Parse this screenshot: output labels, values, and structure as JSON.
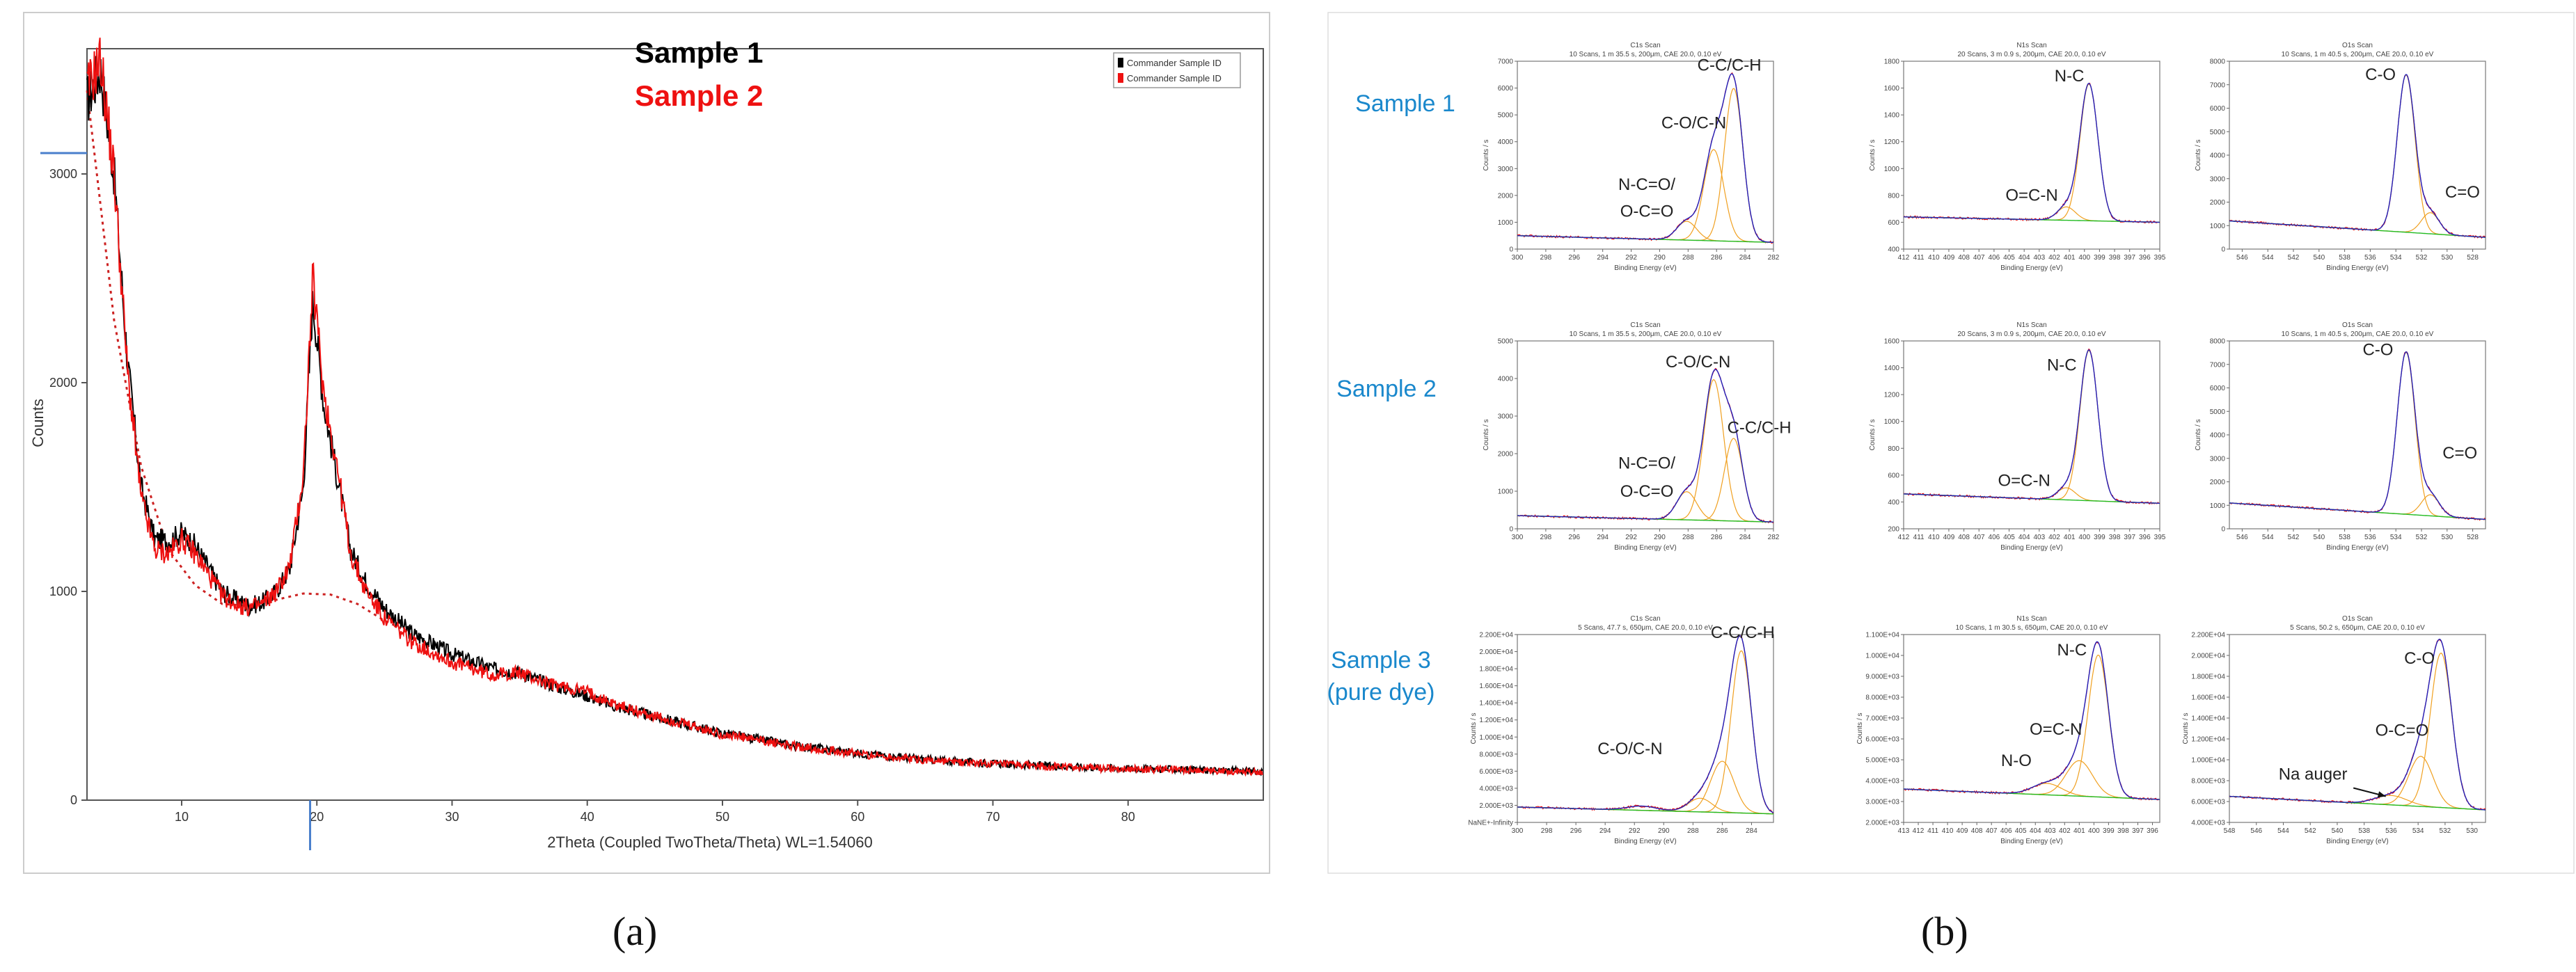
{
  "captions": {
    "a": "(a)",
    "b": "(b)"
  },
  "colors": {
    "sample1": "#000000",
    "sample2": "#ee1111",
    "fit_envelope": "#2222bb",
    "component": "#f0a020",
    "background": "#22bb22",
    "row_label": "#1a88cc",
    "axis_marker": "#4a7fcc"
  },
  "chart_data": [
    {
      "id": "xrd",
      "type": "line",
      "title": "",
      "xlabel": "2Theta (Coupled TwoTheta/Theta) WL=1.54060",
      "ylabel": "Counts",
      "xlim": [
        3,
        90
      ],
      "ylim": [
        0,
        3600
      ],
      "xticks": [
        10,
        20,
        30,
        40,
        50,
        60,
        70,
        80
      ],
      "yticks": [
        0,
        1000,
        2000,
        3000
      ],
      "legend_entries": [
        "Commander Sample ID",
        "Commander Sample ID"
      ],
      "legend_position": "top-right",
      "series_labels": [
        "Sample 1",
        "Sample 2"
      ],
      "series": [
        {
          "name": "Sample 1",
          "color": "#000000",
          "x": [
            3,
            4,
            5,
            6,
            7,
            8,
            9,
            10,
            11,
            12,
            13,
            14,
            15,
            16,
            17,
            18,
            19,
            19.7,
            20.5,
            21.5,
            22.5,
            23.5,
            25,
            27,
            30,
            33,
            35,
            37,
            40,
            42,
            45,
            50,
            55,
            60,
            65,
            70,
            75,
            80,
            85,
            90
          ],
          "y": [
            3350,
            3500,
            3000,
            2100,
            1500,
            1250,
            1240,
            1280,
            1220,
            1110,
            1000,
            960,
            930,
            950,
            1000,
            1110,
            1500,
            2400,
            1900,
            1550,
            1200,
            1060,
            920,
            800,
            700,
            630,
            610,
            560,
            500,
            450,
            400,
            320,
            265,
            225,
            195,
            175,
            162,
            152,
            145,
            138
          ]
        },
        {
          "name": "Sample 2",
          "color": "#ee1111",
          "x": [
            3,
            4,
            5,
            6,
            7,
            8,
            9,
            10,
            11,
            12,
            13,
            14,
            15,
            16,
            17,
            18,
            19,
            19.7,
            20.5,
            21.5,
            22.5,
            23.5,
            25,
            27,
            30,
            33,
            35,
            37,
            40,
            42,
            45,
            50,
            55,
            60,
            65,
            70,
            75,
            80,
            85,
            90
          ],
          "y": [
            3400,
            3550,
            3000,
            2050,
            1450,
            1200,
            1180,
            1250,
            1180,
            1080,
            980,
            940,
            920,
            940,
            1000,
            1120,
            1560,
            2500,
            1960,
            1600,
            1180,
            1020,
            870,
            760,
            660,
            600,
            610,
            560,
            520,
            460,
            400,
            315,
            262,
            222,
            192,
            172,
            160,
            150,
            143,
            136
          ]
        }
      ],
      "baseline": {
        "style": "dotted",
        "color": "#cc2222",
        "x": [
          3,
          5,
          7,
          9,
          11,
          13,
          15,
          17,
          19,
          21,
          23,
          25,
          27
        ],
        "y": [
          3400,
          2300,
          1600,
          1200,
          1030,
          940,
          930,
          960,
          990,
          985,
          940,
          860,
          800
        ]
      }
    },
    {
      "id": "xps-c1s-s1",
      "type": "line",
      "row": 0,
      "col": 0,
      "title_lines": [
        "C1s Scan",
        "10 Scans, 1 m 35.5 s, 200μm, CAE 20.0, 0.10 eV"
      ],
      "xlabel": "Binding Energy (eV)",
      "ylabel": "Counts / s",
      "xlim": [
        300,
        282
      ],
      "ylim": [
        0,
        7000
      ],
      "xticks": [
        300,
        298,
        296,
        294,
        292,
        290,
        288,
        286,
        284,
        282
      ],
      "yticks": [
        0,
        1000,
        2000,
        3000,
        4000,
        5000,
        6000,
        7000
      ],
      "y_sci": false,
      "bg": [
        500,
        250
      ],
      "peaks": [
        {
          "center": 284.8,
          "amp": 5700,
          "width": 0.65,
          "label": "C-C/C-H"
        },
        {
          "center": 286.2,
          "amp": 3400,
          "width": 0.7,
          "label": "C-O/C-N"
        },
        {
          "center": 288.1,
          "amp": 700,
          "width": 0.7,
          "label": "N-C=O/\nO-C=O"
        }
      ],
      "labels": [
        {
          "text": "C-C/C-H",
          "x": 285.1,
          "y": 6650
        },
        {
          "text": "C-O/C-N",
          "x": 287.6,
          "y": 4500
        },
        {
          "text": "N-C=O/",
          "x": 290.9,
          "y": 2200
        },
        {
          "text": "O-C=O",
          "x": 290.9,
          "y": 1200
        }
      ]
    },
    {
      "id": "xps-n1s-s1",
      "type": "line",
      "row": 0,
      "col": 1,
      "title_lines": [
        "N1s Scan",
        "20 Scans, 3 m 0.9 s, 200μm, CAE 20.0, 0.10 eV"
      ],
      "xlabel": "Binding Energy (eV)",
      "ylabel": "Counts / s",
      "xlim": [
        412,
        395
      ],
      "ylim": [
        400,
        1800
      ],
      "xticks": [
        412,
        411,
        410,
        409,
        408,
        407,
        406,
        405,
        404,
        403,
        402,
        401,
        400,
        399,
        398,
        397,
        396,
        395
      ],
      "yticks": [
        400,
        600,
        800,
        1000,
        1200,
        1400,
        1600,
        1800
      ],
      "y_sci": false,
      "bg": [
        640,
        600
      ],
      "peaks": [
        {
          "center": 399.7,
          "amp": 1020,
          "width": 0.6,
          "label": "N-C"
        },
        {
          "center": 401.2,
          "amp": 100,
          "width": 0.6,
          "label": "O=C-N"
        }
      ],
      "labels": [
        {
          "text": "N-C",
          "x": 401.0,
          "y": 1650
        },
        {
          "text": "O=C-N",
          "x": 403.5,
          "y": 760
        }
      ]
    },
    {
      "id": "xps-o1s-s1",
      "type": "line",
      "row": 0,
      "col": 2,
      "title_lines": [
        "O1s Scan",
        "10 Scans, 1 m 40.5 s, 200μm, CAE 20.0, 0.10 eV"
      ],
      "xlabel": "Binding Energy (eV)",
      "ylabel": "Counts / s",
      "xlim": [
        547,
        527
      ],
      "ylim": [
        0,
        8000
      ],
      "xticks": [
        546,
        544,
        542,
        540,
        538,
        536,
        534,
        532,
        530,
        528
      ],
      "yticks": [
        0,
        1000,
        2000,
        3000,
        4000,
        5000,
        6000,
        7000,
        8000
      ],
      "y_sci": false,
      "bg": [
        1200,
        500
      ],
      "peaks": [
        {
          "center": 533.2,
          "amp": 6700,
          "width": 0.7,
          "label": "C-O"
        },
        {
          "center": 531.3,
          "amp": 900,
          "width": 0.7,
          "label": "C=O"
        }
      ],
      "labels": [
        {
          "text": "C-O",
          "x": 535.2,
          "y": 7200
        },
        {
          "text": "C=O",
          "x": 528.8,
          "y": 2200
        }
      ]
    },
    {
      "id": "xps-c1s-s2",
      "type": "line",
      "row": 1,
      "col": 0,
      "title_lines": [
        "C1s Scan",
        "10 Scans, 1 m 35.5 s, 200μm, CAE 20.0, 0.10 eV"
      ],
      "xlabel": "Binding Energy (eV)",
      "ylabel": "Counts / s",
      "xlim": [
        300,
        282
      ],
      "ylim": [
        0,
        5000
      ],
      "xticks": [
        300,
        298,
        296,
        294,
        292,
        290,
        288,
        286,
        284,
        282
      ],
      "yticks": [
        0,
        1000,
        2000,
        3000,
        4000,
        5000
      ],
      "y_sci": false,
      "bg": [
        350,
        180
      ],
      "peaks": [
        {
          "center": 286.2,
          "amp": 3750,
          "width": 0.7,
          "label": "C-O/C-N"
        },
        {
          "center": 284.8,
          "amp": 2200,
          "width": 0.65,
          "label": "C-C/C-H"
        },
        {
          "center": 288.1,
          "amp": 750,
          "width": 0.7,
          "label": "N-C=O/\nO-C=O"
        }
      ],
      "labels": [
        {
          "text": "C-O/C-N",
          "x": 287.3,
          "y": 4300
        },
        {
          "text": "C-C/C-H",
          "x": 283.0,
          "y": 2550
        },
        {
          "text": "N-C=O/",
          "x": 290.9,
          "y": 1600
        },
        {
          "text": "O-C=O",
          "x": 290.9,
          "y": 850
        }
      ]
    },
    {
      "id": "xps-n1s-s2",
      "type": "line",
      "row": 1,
      "col": 1,
      "title_lines": [
        "N1s Scan",
        "20 Scans, 3 m 0.9 s, 200μm, CAE 20.0, 0.10 eV"
      ],
      "xlabel": "Binding Energy (eV)",
      "ylabel": "Counts / s",
      "xlim": [
        412,
        395
      ],
      "ylim": [
        200,
        1600
      ],
      "xticks": [
        412,
        411,
        410,
        409,
        408,
        407,
        406,
        405,
        404,
        403,
        402,
        401,
        400,
        399,
        398,
        397,
        396,
        395
      ],
      "yticks": [
        200,
        400,
        600,
        800,
        1000,
        1200,
        1400,
        1600
      ],
      "y_sci": false,
      "bg": [
        460,
        390
      ],
      "peaks": [
        {
          "center": 399.7,
          "amp": 1120,
          "width": 0.6,
          "label": "N-C"
        },
        {
          "center": 401.2,
          "amp": 90,
          "width": 0.6,
          "label": "O=C-N"
        }
      ],
      "labels": [
        {
          "text": "N-C",
          "x": 401.5,
          "y": 1380
        },
        {
          "text": "O=C-N",
          "x": 404.0,
          "y": 520
        }
      ]
    },
    {
      "id": "xps-o1s-s2",
      "type": "line",
      "row": 1,
      "col": 2,
      "title_lines": [
        "O1s Scan",
        "10 Scans, 1 m 40.5 s, 200μm, CAE 20.0, 0.10 eV"
      ],
      "xlabel": "Binding Energy (eV)",
      "ylabel": "Counts / s",
      "xlim": [
        547,
        527
      ],
      "ylim": [
        0,
        8000
      ],
      "xticks": [
        546,
        544,
        542,
        540,
        538,
        536,
        534,
        532,
        530,
        528
      ],
      "yticks": [
        0,
        1000,
        2000,
        3000,
        4000,
        5000,
        6000,
        7000,
        8000
      ],
      "y_sci": false,
      "bg": [
        1100,
        400
      ],
      "peaks": [
        {
          "center": 533.2,
          "amp": 6900,
          "width": 0.7,
          "label": "C-O"
        },
        {
          "center": 531.3,
          "amp": 900,
          "width": 0.7,
          "label": "C=O"
        }
      ],
      "labels": [
        {
          "text": "C-O",
          "x": 535.4,
          "y": 7400
        },
        {
          "text": "C=O",
          "x": 529.0,
          "y": 3000
        }
      ]
    },
    {
      "id": "xps-c1s-s3",
      "type": "line",
      "row": 2,
      "col": 0,
      "title_lines": [
        "C1s Scan",
        "5 Scans, 47.7 s, 650μm, CAE 20.0, 0.10 eV"
      ],
      "xlabel": "Binding Energy (eV)",
      "ylabel": "Counts / s",
      "xlim": [
        300,
        282.5
      ],
      "ylim": [
        0,
        22000
      ],
      "xticks": [
        300,
        298,
        296,
        294,
        292,
        290,
        288,
        286,
        284
      ],
      "yticks": [
        0,
        2000,
        4000,
        6000,
        8000,
        10000,
        12000,
        14000,
        16000,
        18000,
        20000,
        22000
      ],
      "y_sci": true,
      "bg": [
        1800,
        1000
      ],
      "peaks": [
        {
          "center": 284.7,
          "amp": 19000,
          "width": 0.7,
          "label": "C-C/C-H"
        },
        {
          "center": 286.0,
          "amp": 6000,
          "width": 0.8,
          "label": "C-O/C-N"
        },
        {
          "center": 287.5,
          "amp": 1600,
          "width": 0.8,
          "label": ""
        },
        {
          "center": 291.5,
          "amp": 500,
          "width": 1.0,
          "label": ""
        }
      ],
      "labels": [
        {
          "text": "C-C/C-H",
          "x": 284.6,
          "y": 21600
        },
        {
          "text": "C-O/C-N",
          "x": 292.3,
          "y": 8000
        }
      ]
    },
    {
      "id": "xps-n1s-s3",
      "type": "line",
      "row": 2,
      "col": 1,
      "title_lines": [
        "N1s Scan",
        "10 Scans, 1 m 30.5 s, 650μm, CAE 20.0, 0.10 eV"
      ],
      "xlabel": "Binding Energy (eV)",
      "ylabel": "Counts / s",
      "xlim": [
        413,
        395.5
      ],
      "ylim": [
        2000,
        11000
      ],
      "xticks": [
        413,
        412,
        411,
        410,
        409,
        408,
        407,
        406,
        405,
        404,
        403,
        402,
        401,
        400,
        399,
        398,
        397,
        396
      ],
      "yticks": [
        2000,
        3000,
        4000,
        5000,
        6000,
        7000,
        8000,
        9000,
        10000,
        11000
      ],
      "y_sci": true,
      "bg": [
        3600,
        3100
      ],
      "peaks": [
        {
          "center": 399.7,
          "amp": 6800,
          "width": 0.7,
          "label": "N-C"
        },
        {
          "center": 401.0,
          "amp": 1700,
          "width": 0.9,
          "label": "O=C-N"
        },
        {
          "center": 403.2,
          "amp": 550,
          "width": 1.0,
          "label": "N-O"
        }
      ],
      "labels": [
        {
          "text": "N-C",
          "x": 401.5,
          "y": 10000
        },
        {
          "text": "O=C-N",
          "x": 402.6,
          "y": 6200
        },
        {
          "text": "N-O",
          "x": 405.3,
          "y": 4700
        }
      ]
    },
    {
      "id": "xps-o1s-s3",
      "type": "line",
      "row": 2,
      "col": 2,
      "title_lines": [
        "O1s Scan",
        "5 Scans, 50.2 s, 650μm, CAE 20.0, 0.10 eV"
      ],
      "xlabel": "Binding Energy (eV)",
      "ylabel": "Counts / s",
      "xlim": [
        548,
        529
      ],
      "ylim": [
        4000,
        22000
      ],
      "xticks": [
        548,
        546,
        544,
        542,
        540,
        538,
        536,
        534,
        532,
        530
      ],
      "yticks": [
        4000,
        6000,
        8000,
        10000,
        12000,
        14000,
        16000,
        18000,
        20000,
        22000
      ],
      "y_sci": true,
      "bg": [
        6500,
        5200
      ],
      "peaks": [
        {
          "center": 532.3,
          "amp": 14800,
          "width": 0.8,
          "label": "C-O"
        },
        {
          "center": 533.8,
          "amp": 4800,
          "width": 0.9,
          "label": "O-C=O"
        },
        {
          "center": 536.0,
          "amp": 900,
          "width": 1.2,
          "label": "Na auger"
        }
      ],
      "labels": [
        {
          "text": "C-O",
          "x": 533.9,
          "y": 19200
        },
        {
          "text": "O-C=O",
          "x": 535.2,
          "y": 12300
        },
        {
          "text": "Na auger",
          "x": 541.8,
          "y": 8100
        }
      ],
      "arrow": {
        "from": [
          538.8,
          7300
        ],
        "to": [
          536.4,
          6500
        ]
      }
    }
  ],
  "xps_row_labels": [
    {
      "lines": [
        "Sample 1"
      ]
    },
    {
      "lines": [
        "Sample 2"
      ]
    },
    {
      "lines": [
        "Sample 3",
        "(pure dye)"
      ]
    }
  ]
}
